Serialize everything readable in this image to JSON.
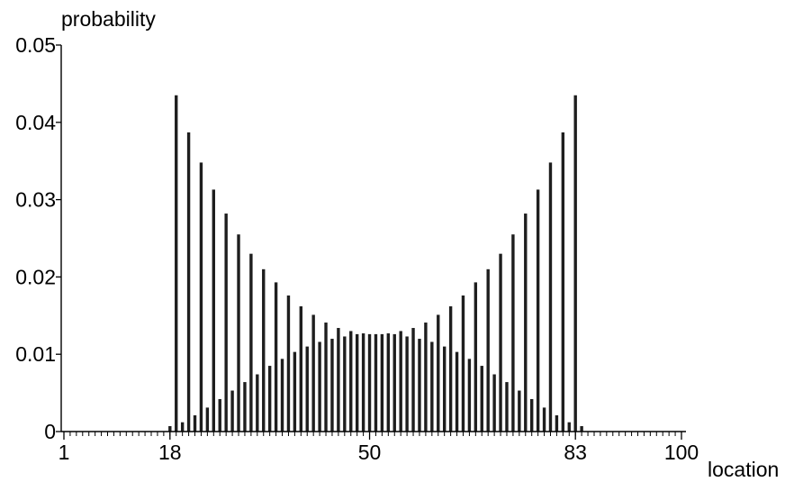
{
  "chart_data": {
    "type": "bar",
    "title": "",
    "xlabel": "location",
    "ylabel": "probability",
    "xlim": [
      1,
      100
    ],
    "ylim": [
      0,
      0.05
    ],
    "x_ticks": [
      {
        "value": 1,
        "label": "1"
      },
      {
        "value": 18,
        "label": "18"
      },
      {
        "value": 50,
        "label": "50"
      },
      {
        "value": 83,
        "label": "83"
      },
      {
        "value": 100,
        "label": "100"
      }
    ],
    "y_ticks": [
      {
        "value": 0,
        "label": "0"
      },
      {
        "value": 0.01,
        "label": "0.01"
      },
      {
        "value": 0.02,
        "label": "0.02"
      },
      {
        "value": 0.03,
        "label": "0.03"
      },
      {
        "value": 0.04,
        "label": "0.04"
      },
      {
        "value": 0.05,
        "label": "0.05"
      }
    ],
    "grid": false,
    "bar_color": "#1e1e1e",
    "x": [
      18,
      19,
      20,
      21,
      22,
      23,
      24,
      25,
      26,
      27,
      28,
      29,
      30,
      31,
      32,
      33,
      34,
      35,
      36,
      37,
      38,
      39,
      40,
      41,
      42,
      43,
      44,
      45,
      46,
      47,
      48,
      49,
      50,
      51,
      52,
      53,
      54,
      55,
      56,
      57,
      58,
      59,
      60,
      61,
      62,
      63,
      64,
      65,
      66,
      67,
      68,
      69,
      70,
      71,
      72,
      73,
      74,
      75,
      76,
      77,
      78,
      79,
      80,
      81,
      82,
      83,
      84
    ],
    "values": [
      0.0007,
      0.0435,
      0.0012,
      0.0387,
      0.0021,
      0.0348,
      0.0031,
      0.0313,
      0.0042,
      0.0282,
      0.0053,
      0.0255,
      0.0064,
      0.023,
      0.0074,
      0.021,
      0.0085,
      0.0193,
      0.0094,
      0.0176,
      0.0103,
      0.0162,
      0.011,
      0.0151,
      0.0116,
      0.0141,
      0.012,
      0.0134,
      0.0123,
      0.013,
      0.0126,
      0.0127,
      0.0126,
      0.0126,
      0.0126,
      0.0127,
      0.0126,
      0.013,
      0.0123,
      0.0134,
      0.012,
      0.0141,
      0.0116,
      0.0151,
      0.011,
      0.0162,
      0.0103,
      0.0176,
      0.0094,
      0.0193,
      0.0085,
      0.021,
      0.0074,
      0.023,
      0.0064,
      0.0255,
      0.0053,
      0.0282,
      0.0042,
      0.0313,
      0.0031,
      0.0348,
      0.0021,
      0.0387,
      0.0012,
      0.0435,
      0.0007
    ]
  }
}
